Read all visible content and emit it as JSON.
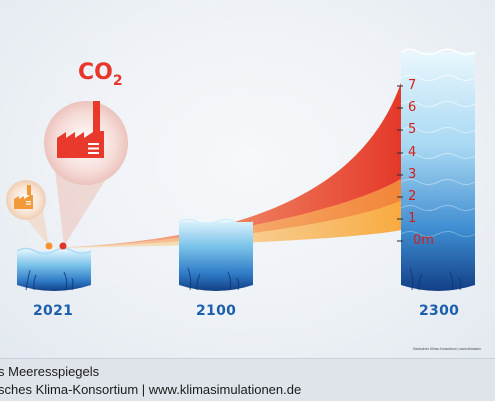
{
  "diagram": {
    "years": [
      "2021",
      "2100",
      "2300"
    ],
    "scale_labels": [
      "7",
      "6",
      "5",
      "4",
      "3",
      "2",
      "1",
      "0m"
    ],
    "emission_label": "CO",
    "emission_subscript": "2",
    "image_credit": "Deutsches Klima-Konsortium | www.klimasim"
  },
  "caption": {
    "title_fragment": "s Meeresspiegels",
    "source_fragment": "sches Klima-Konsortium | www.klimasimulationen.de"
  },
  "colors": {
    "red_band": "#e8432e",
    "orange_band": "#f28a3a",
    "yellow_band": "#f9b44a",
    "water_dark": "#1e5fa8",
    "water_light": "#bfe3f7",
    "year_text": "#1c5fae",
    "scale_text": "#d41f16"
  },
  "icons": [
    "factory-icon-small",
    "factory-icon-large",
    "co2-label"
  ]
}
